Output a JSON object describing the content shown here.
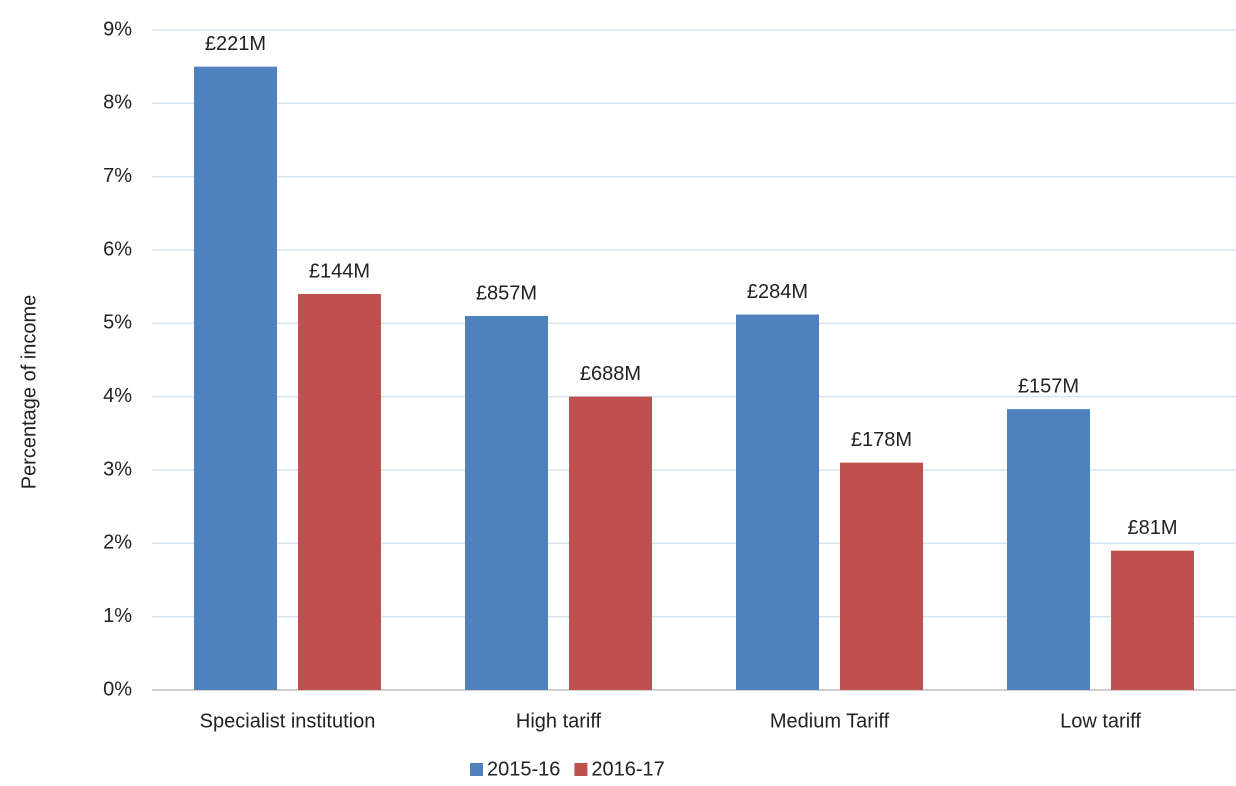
{
  "chart_data": {
    "type": "bar",
    "y_label": "Percentage of income",
    "categories": [
      "Specialist institution",
      "High tariff",
      "Medium Tariff",
      "Low tariff"
    ],
    "series": [
      {
        "name": "2015-16",
        "color": "#4f81bd",
        "values": [
          8.5,
          5.1,
          5.12,
          3.83
        ],
        "bar_labels": [
          "£221M",
          "£857M",
          "£284M",
          "£157M"
        ]
      },
      {
        "name": "2016-17",
        "color": "#c0504d",
        "values": [
          5.4,
          4.0,
          3.1,
          1.9
        ],
        "bar_labels": [
          "£144M",
          "£688M",
          "£178M",
          "£81M"
        ]
      }
    ],
    "ylim": [
      0,
      9
    ],
    "yticks": [
      {
        "value": 0,
        "label": "0%"
      },
      {
        "value": 1,
        "label": "1%"
      },
      {
        "value": 2,
        "label": "2%"
      },
      {
        "value": 3,
        "label": "3%"
      },
      {
        "value": 4,
        "label": "4%"
      },
      {
        "value": 5,
        "label": "5%"
      },
      {
        "value": 6,
        "label": "6%"
      },
      {
        "value": 7,
        "label": "7%"
      },
      {
        "value": 8,
        "label": "8%"
      },
      {
        "value": 9,
        "label": "9%"
      }
    ],
    "grid": true,
    "legend": "bottom"
  }
}
